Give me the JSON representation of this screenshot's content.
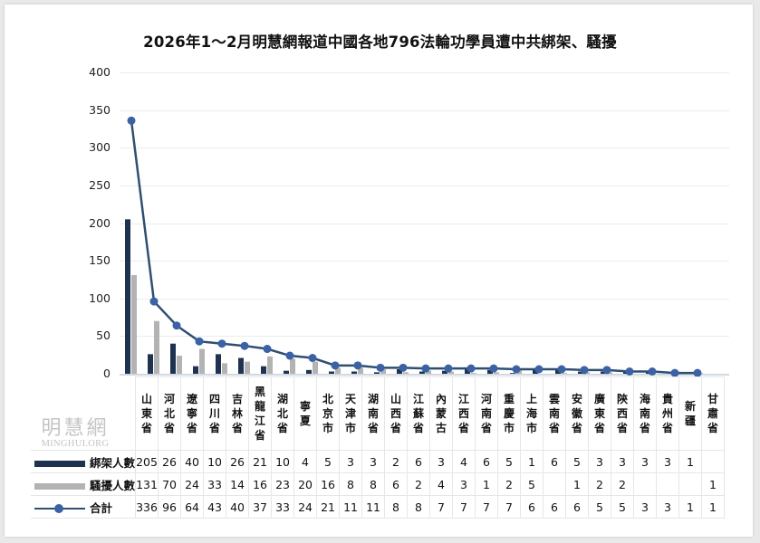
{
  "title": "2026年1～2月明慧網報道中國各地796法輪功學員遭中共綁架、騷擾",
  "watermark": {
    "cn": "明慧網",
    "en": "MINGHUI.ORG"
  },
  "yaxis": {
    "ticks": [
      "400",
      "350",
      "300",
      "250",
      "200",
      "150",
      "100",
      "50",
      "0"
    ]
  },
  "legend": {
    "abducted": "綁架人數",
    "harassed": "騷擾人數",
    "total": "合計"
  },
  "colors": {
    "abducted": "#1f3350",
    "harassed": "#b3b3b3",
    "total_line": "#2f4f72",
    "total_marker": "#3a62a4"
  },
  "categories_display": [
    "山\n東\n省",
    "河\n北\n省",
    "遼\n寧\n省",
    "四\n川\n省",
    "吉\n林\n省",
    "黑\n龍\n江\n省",
    "湖\n北\n省",
    "寧\n夏",
    "北\n京\n市",
    "天\n津\n市",
    "湖\n南\n省",
    "山\n西\n省",
    "江\n蘇\n省",
    "內\n蒙\n古",
    "江\n西\n省",
    "河\n南\n省",
    "重\n慶\n市",
    "上\n海\n市",
    "雲\n南\n省",
    "安\n徽\n省",
    "廣\n東\n省",
    "陝\n西\n省",
    "海\n南\n省",
    "貴\n州\n省",
    "新\n疆",
    "甘\n肅\n省"
  ],
  "table": {
    "abducted": [
      "205",
      "26",
      "40",
      "10",
      "26",
      "21",
      "10",
      "4",
      "5",
      "3",
      "3",
      "2",
      "6",
      "3",
      "4",
      "6",
      "5",
      "1",
      "6",
      "5",
      "3",
      "3",
      "3",
      "3",
      "1",
      ""
    ],
    "harassed": [
      "131",
      "70",
      "24",
      "33",
      "14",
      "16",
      "23",
      "20",
      "16",
      "8",
      "8",
      "6",
      "2",
      "4",
      "3",
      "1",
      "2",
      "5",
      "",
      "1",
      "2",
      "2",
      "",
      "",
      "",
      "1"
    ],
    "total": [
      "336",
      "96",
      "64",
      "43",
      "40",
      "37",
      "33",
      "24",
      "21",
      "11",
      "11",
      "8",
      "8",
      "7",
      "7",
      "7",
      "7",
      "6",
      "6",
      "6",
      "5",
      "5",
      "3",
      "3",
      "1",
      "1"
    ]
  },
  "chart_data": {
    "type": "bar",
    "title": "2026年1～2月明慧網報道中國各地796法輪功學員遭中共綁架、騷擾",
    "xlabel": "",
    "ylabel": "",
    "ylim": [
      0,
      400
    ],
    "yticks": [
      0,
      50,
      100,
      150,
      200,
      250,
      300,
      350,
      400
    ],
    "grid": true,
    "legend_position": "data-table-left",
    "categories": [
      "山東省",
      "河北省",
      "遼寧省",
      "四川省",
      "吉林省",
      "黑龍江省",
      "湖北省",
      "寧夏",
      "北京市",
      "天津市",
      "湖南省",
      "山西省",
      "江蘇省",
      "內蒙古",
      "江西省",
      "河南省",
      "重慶市",
      "上海市",
      "雲南省",
      "安徽省",
      "廣東省",
      "陝西省",
      "海南省",
      "貴州省",
      "新疆",
      "甘肅省"
    ],
    "series": [
      {
        "name": "綁架人數",
        "type": "bar",
        "color": "#1f3350",
        "values": [
          205,
          26,
          40,
          10,
          26,
          21,
          10,
          4,
          5,
          3,
          3,
          2,
          6,
          3,
          4,
          6,
          5,
          1,
          6,
          5,
          3,
          3,
          3,
          3,
          1,
          0
        ]
      },
      {
        "name": "騷擾人數",
        "type": "bar",
        "color": "#b3b3b3",
        "values": [
          131,
          70,
          24,
          33,
          14,
          16,
          23,
          20,
          16,
          8,
          8,
          6,
          2,
          4,
          3,
          1,
          2,
          5,
          0,
          1,
          2,
          2,
          0,
          0,
          0,
          1
        ]
      },
      {
        "name": "合計",
        "type": "line",
        "color": "#2f4f72",
        "marker": "circle",
        "values": [
          336,
          96,
          64,
          43,
          40,
          37,
          33,
          24,
          21,
          11,
          11,
          8,
          8,
          7,
          7,
          7,
          7,
          6,
          6,
          6,
          5,
          5,
          3,
          3,
          1,
          1
        ]
      }
    ]
  }
}
